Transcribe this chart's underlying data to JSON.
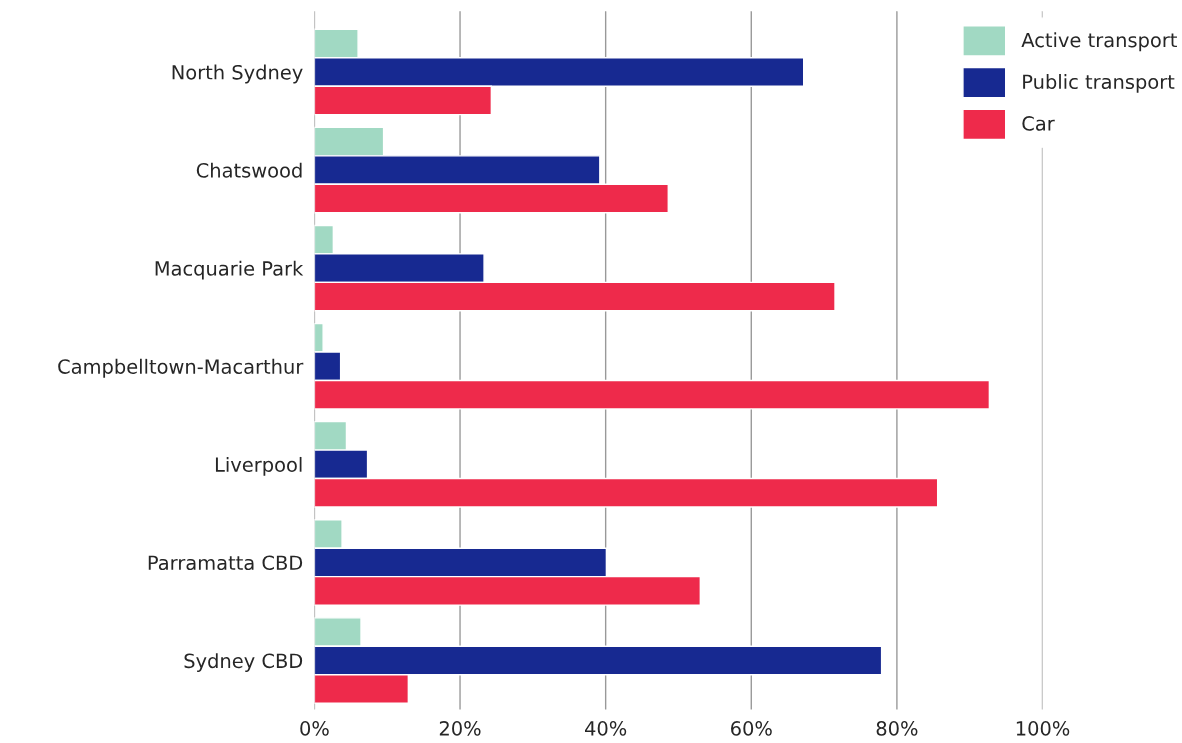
{
  "chart_data": {
    "type": "bar",
    "orientation": "horizontal",
    "categories": [
      "North Sydney",
      "Chatswood",
      "Macquarie Park",
      "Campbelltown-Macarthur",
      "Liverpool",
      "Parramatta CBD",
      "Sydney CBD"
    ],
    "series": [
      {
        "name": "Active transport",
        "color": "#a1d9c3",
        "values": [
          6.0,
          9.5,
          2.6,
          1.2,
          4.4,
          3.8,
          6.4
        ]
      },
      {
        "name": "Public transport",
        "color": "#172991",
        "values": [
          67.2,
          39.2,
          23.3,
          3.6,
          7.3,
          40.1,
          77.9
        ]
      },
      {
        "name": "Car",
        "color": "#ee2a4b",
        "values": [
          24.3,
          48.6,
          71.5,
          92.7,
          85.6,
          53.0,
          12.9
        ]
      }
    ],
    "xlim": [
      0,
      100
    ],
    "xticks": [
      {
        "value": 0,
        "label": "0%"
      },
      {
        "value": 20,
        "label": "20%"
      },
      {
        "value": 40,
        "label": "40%"
      },
      {
        "value": 60,
        "label": "60%"
      },
      {
        "value": 80,
        "label": "80%"
      },
      {
        "value": 100,
        "label": "100%"
      }
    ],
    "grid": "x",
    "legend": "top right"
  }
}
